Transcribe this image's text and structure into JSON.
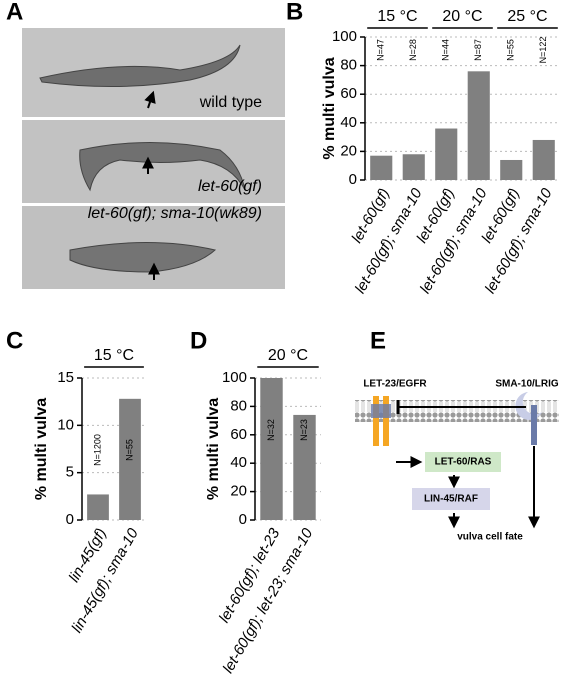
{
  "panels": [
    "A",
    "B",
    "C",
    "D",
    "E"
  ],
  "images": {
    "labels": [
      "wild type",
      "let-60(gf)",
      "let-60(gf); sma-10(wk89)"
    ]
  },
  "diagram": {
    "nodes": [
      "LET-23/EGFR",
      "SMA-10/LRIG",
      "LET-60/RAS",
      "LIN-45/RAF",
      "vulva cell fate"
    ]
  },
  "chart_data": [
    {
      "type": "bar",
      "y_label": "% multi vulva",
      "categories": [
        "let-60(gf)",
        "let-60(gf); sma-10",
        "let-60(gf)",
        "let-60(gf); sma-10",
        "let-60(gf)",
        "let-60(gf); sma-10"
      ],
      "values": [
        17,
        18,
        36,
        76,
        14,
        28
      ],
      "color": "#808080",
      "annotations": [
        "N=47",
        "N=28",
        "N=44",
        "N=87",
        "N=55",
        "N=122"
      ],
      "group_labels": [
        "15 °C",
        null,
        "20 °C",
        null,
        "25 °C",
        null
      ],
      "ylim": [
        0,
        100
      ],
      "yticks": [
        0,
        20,
        40,
        60,
        80,
        100
      ],
      "grid": true
    },
    {
      "type": "bar",
      "y_label": "% multi vulva",
      "categories": [
        "lin-45(gf)",
        "lin-45(gf); sma-10"
      ],
      "values": [
        2.7,
        12.8
      ],
      "color": "#808080",
      "annotations": [
        "N=1200",
        "N=55"
      ],
      "group_labels": [
        "15 °C",
        null
      ],
      "ylim": [
        0,
        15
      ],
      "yticks": [
        0,
        5,
        10,
        15
      ],
      "grid": true
    },
    {
      "type": "bar",
      "y_label": "% multi vulva",
      "categories": [
        "let-60(gf); let-23",
        "let-60(gf); let-23; sma-10"
      ],
      "values": [
        100,
        74
      ],
      "color": "#808080",
      "annotations": [
        "N=32",
        "N=23"
      ],
      "group_labels": [
        "20 °C",
        null
      ],
      "ylim": [
        0,
        100
      ],
      "yticks": [
        0,
        20,
        40,
        60,
        80,
        100
      ],
      "grid": true
    }
  ]
}
